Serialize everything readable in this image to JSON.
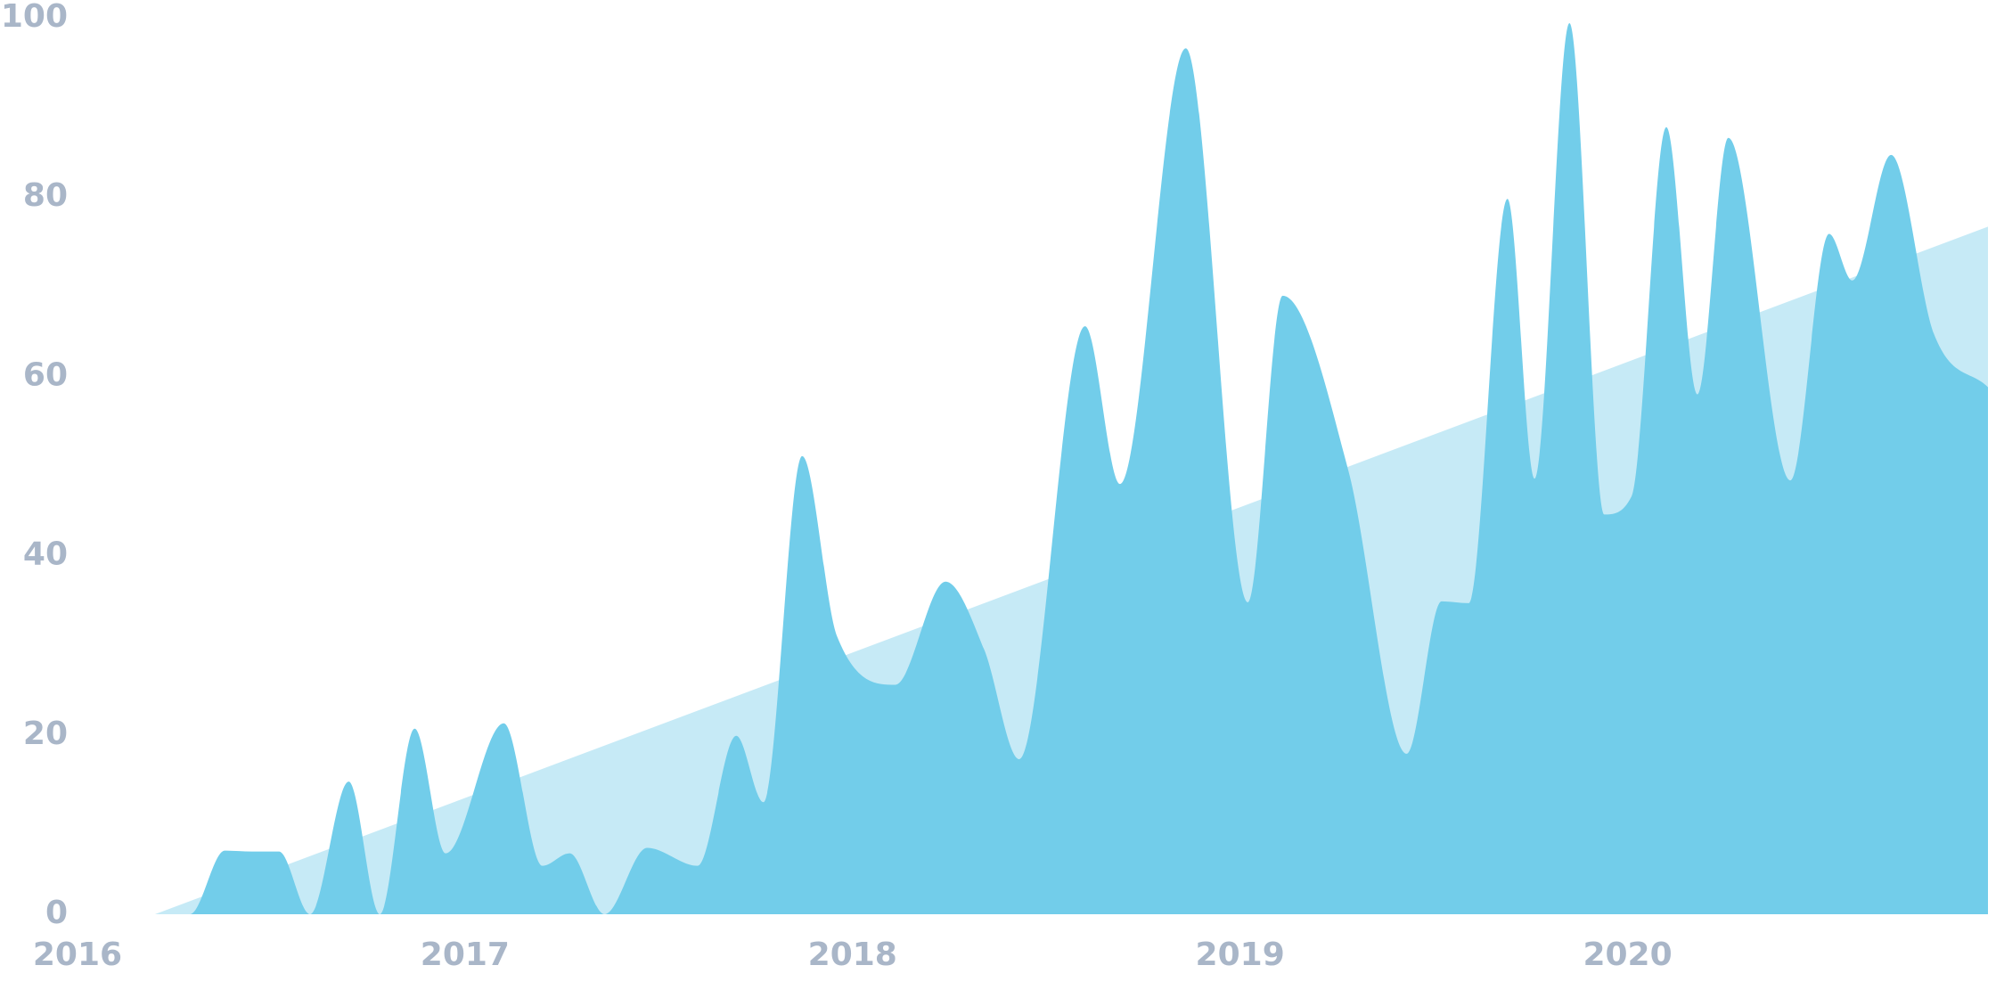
{
  "chart_data": {
    "type": "area",
    "x": [
      2015.8,
      2016.29,
      2016.38,
      2016.45,
      2016.52,
      2016.6,
      2016.7,
      2016.78,
      2016.87,
      2016.95,
      2017.1,
      2017.2,
      2017.27,
      2017.36,
      2017.47,
      2017.6,
      2017.7,
      2017.77,
      2017.87,
      2017.96,
      2018.11,
      2018.24,
      2018.34,
      2018.43,
      2018.6,
      2018.69,
      2018.86,
      2019.02,
      2019.11,
      2019.28,
      2019.43,
      2019.52,
      2019.59,
      2019.69,
      2019.76,
      2019.85,
      2019.94,
      2020.01,
      2020.1,
      2020.18,
      2020.26,
      2020.42,
      2020.52,
      2020.58,
      2020.68,
      2020.79,
      2020.93
    ],
    "series": [
      {
        "color": "#72cdea",
        "values": [
          0,
          0,
          7.1,
          7,
          7,
          0,
          14.8,
          0,
          20.7,
          6.8,
          21.3,
          5.4,
          6.8,
          0,
          7.4,
          5.4,
          19.9,
          12.5,
          51.1,
          31,
          25.6,
          37.1,
          29.5,
          17.3,
          65.6,
          48,
          96.6,
          34.8,
          69,
          49.4,
          17.9,
          34.9,
          34.7,
          79.8,
          48.6,
          99.4,
          44.6,
          46.6,
          87.8,
          58,
          86.6,
          48.4,
          75.9,
          70.7,
          84.7,
          64.8,
          58.8
        ]
      }
    ],
    "trend": {
      "color": "#c6eaf6",
      "x": [
        2016.2,
        2020.93
      ],
      "values": [
        0,
        76.7
      ]
    },
    "xlim": [
      2015.8,
      2020.93
    ],
    "xticks": [
      2016,
      2017,
      2018,
      2019,
      2020
    ],
    "ylim": [
      0,
      100
    ],
    "yticks": [
      0,
      20,
      40,
      60,
      80,
      100
    ],
    "grid": false
  }
}
